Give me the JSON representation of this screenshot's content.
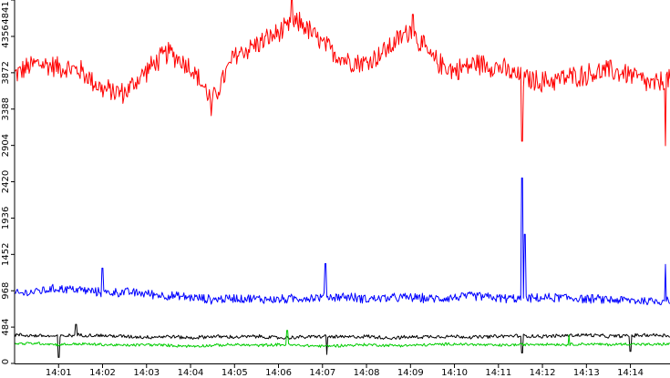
{
  "chart_data": {
    "type": "line",
    "title": "",
    "xlabel": "",
    "ylabel": "",
    "ylim": [
      0,
      4841
    ],
    "yticks": [
      0,
      484,
      968,
      1452,
      1936,
      2420,
      2904,
      3388,
      3872,
      4356,
      4841
    ],
    "xlim_minutes": [
      0,
      14.9
    ],
    "xticks": [
      {
        "label": "14:01",
        "minute": 1
      },
      {
        "label": "14:02",
        "minute": 2
      },
      {
        "label": "14:03",
        "minute": 3
      },
      {
        "label": "14:04",
        "minute": 4
      },
      {
        "label": "14:05",
        "minute": 5
      },
      {
        "label": "14:06",
        "minute": 6
      },
      {
        "label": "14:07",
        "minute": 7
      },
      {
        "label": "14:08",
        "minute": 8
      },
      {
        "label": "14:09",
        "minute": 9
      },
      {
        "label": "14:10",
        "minute": 10
      },
      {
        "label": "14:11",
        "minute": 11
      },
      {
        "label": "14:12",
        "minute": 12
      },
      {
        "label": "14:13",
        "minute": 13
      },
      {
        "label": "14:14",
        "minute": 14
      }
    ],
    "grid": false,
    "legend": "none",
    "series": [
      {
        "color": "#ff0000",
        "x": [
          "14:00:00",
          "14:00:30",
          "14:01:00",
          "14:01:30",
          "14:02:00",
          "14:02:30",
          "14:03:00",
          "14:03:30",
          "14:04:00",
          "14:04:30",
          "14:05:00",
          "14:05:30",
          "14:06:00",
          "14:06:30",
          "14:07:00",
          "14:07:30",
          "14:08:00",
          "14:08:30",
          "14:09:00",
          "14:09:30",
          "14:10:00",
          "14:10:30",
          "14:11:00",
          "14:11:30",
          "14:12:00",
          "14:12:30",
          "14:13:00",
          "14:13:30",
          "14:14:00",
          "14:14:30",
          "14:14:54"
        ],
        "values": [
          3850,
          4000,
          3950,
          3900,
          3650,
          3600,
          3900,
          4150,
          3950,
          3500,
          4100,
          4250,
          4400,
          4550,
          4250,
          4050,
          4000,
          4200,
          4450,
          4050,
          3900,
          4000,
          3950,
          3800,
          3750,
          3800,
          3850,
          3900,
          3850,
          3700,
          3800
        ],
        "spikes": [
          {
            "x": "14:06:18",
            "value": 4841
          },
          {
            "x": "14:09:03",
            "value": 4650
          },
          {
            "x": "14:04:28",
            "value": 3300
          },
          {
            "x": "14:11:32",
            "value": 2960
          },
          {
            "x": "14:14:48",
            "value": 2900
          }
        ]
      },
      {
        "color": "#0000ff",
        "x": [
          "14:00:00",
          "14:00:30",
          "14:01:00",
          "14:01:30",
          "14:02:00",
          "14:02:30",
          "14:03:00",
          "14:03:30",
          "14:04:00",
          "14:04:30",
          "14:05:00",
          "14:05:30",
          "14:06:00",
          "14:06:30",
          "14:07:00",
          "14:07:30",
          "14:08:00",
          "14:08:30",
          "14:09:00",
          "14:09:30",
          "14:10:00",
          "14:10:30",
          "14:11:00",
          "14:11:30",
          "14:12:00",
          "14:12:30",
          "14:13:00",
          "14:13:30",
          "14:14:00",
          "14:14:30",
          "14:14:54"
        ],
        "values": [
          920,
          960,
          1000,
          980,
          940,
          950,
          930,
          900,
          880,
          850,
          870,
          860,
          850,
          870,
          880,
          890,
          860,
          870,
          880,
          860,
          880,
          900,
          870,
          860,
          870,
          880,
          860,
          850,
          840,
          830,
          840
        ],
        "spikes": [
          {
            "x": "14:02:00",
            "value": 1270
          },
          {
            "x": "14:07:04",
            "value": 1330
          },
          {
            "x": "14:11:32",
            "value": 2470
          },
          {
            "x": "14:11:36",
            "value": 1720
          },
          {
            "x": "14:14:48",
            "value": 1320
          }
        ]
      },
      {
        "color": "#000000",
        "x": [
          "14:00:00",
          "14:00:30",
          "14:01:00",
          "14:01:30",
          "14:02:00",
          "14:02:30",
          "14:03:00",
          "14:03:30",
          "14:04:00",
          "14:04:30",
          "14:05:00",
          "14:05:30",
          "14:06:00",
          "14:06:30",
          "14:07:00",
          "14:07:30",
          "14:08:00",
          "14:08:30",
          "14:09:00",
          "14:09:30",
          "14:10:00",
          "14:10:30",
          "14:11:00",
          "14:11:30",
          "14:12:00",
          "14:12:30",
          "14:13:00",
          "14:13:30",
          "14:14:00",
          "14:14:30",
          "14:14:54"
        ],
        "values": [
          380,
          370,
          360,
          380,
          370,
          360,
          350,
          360,
          340,
          360,
          350,
          360,
          340,
          350,
          360,
          350,
          360,
          340,
          350,
          360,
          360,
          350,
          360,
          370,
          360,
          370,
          380,
          360,
          370,
          380,
          370
        ],
        "spikes": [
          {
            "x": "14:01:24",
            "value": 520
          },
          {
            "x": "14:01:00",
            "value": 80
          },
          {
            "x": "14:07:06",
            "value": 120
          },
          {
            "x": "14:11:32",
            "value": 140
          },
          {
            "x": "14:14:00",
            "value": 160
          }
        ]
      },
      {
        "color": "#00cc00",
        "x": [
          "14:00:00",
          "14:00:30",
          "14:01:00",
          "14:01:30",
          "14:02:00",
          "14:02:30",
          "14:03:00",
          "14:03:30",
          "14:04:00",
          "14:04:30",
          "14:05:00",
          "14:05:30",
          "14:06:00",
          "14:06:30",
          "14:07:00",
          "14:07:30",
          "14:08:00",
          "14:08:30",
          "14:09:00",
          "14:09:30",
          "14:10:00",
          "14:10:30",
          "14:11:00",
          "14:11:30",
          "14:12:00",
          "14:12:30",
          "14:13:00",
          "14:13:30",
          "14:14:00",
          "14:14:30",
          "14:14:54"
        ],
        "values": [
          260,
          270,
          250,
          260,
          250,
          240,
          250,
          240,
          230,
          240,
          250,
          240,
          250,
          240,
          230,
          240,
          250,
          240,
          240,
          250,
          260,
          250,
          240,
          250,
          260,
          250,
          260,
          250,
          260,
          250,
          260
        ],
        "spikes": [
          {
            "x": "14:06:12",
            "value": 440
          },
          {
            "x": "14:12:36",
            "value": 380
          }
        ]
      }
    ]
  }
}
